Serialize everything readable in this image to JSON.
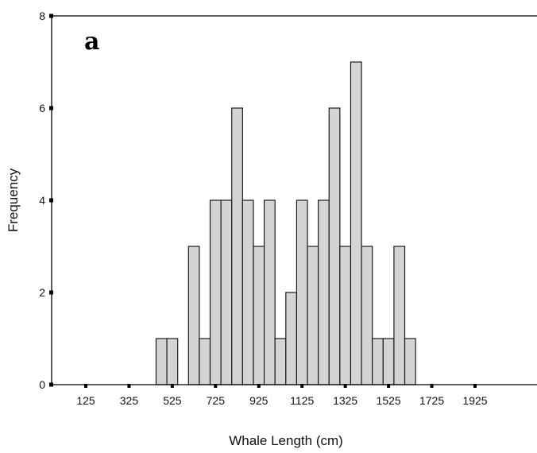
{
  "chart_data": {
    "type": "bar",
    "title": "",
    "panel_label": "a",
    "xlabel": "Whale Length (cm)",
    "ylabel": "Frequency",
    "ylim": [
      0,
      8
    ],
    "yticks": [
      0,
      2,
      4,
      6,
      8
    ],
    "xticks": [
      125,
      325,
      525,
      725,
      925,
      1125,
      1325,
      1525,
      1725,
      1925
    ],
    "xlim": [
      25,
      2125
    ],
    "bin_width": 50,
    "bin_centers": [
      475,
      525,
      625,
      675,
      725,
      775,
      825,
      875,
      925,
      975,
      1025,
      1075,
      1125,
      1175,
      1225,
      1275,
      1325,
      1375,
      1425,
      1475,
      1525,
      1575,
      1625
    ],
    "values": [
      1,
      1,
      3,
      1,
      4,
      4,
      6,
      4,
      3,
      4,
      1,
      2,
      4,
      3,
      4,
      6,
      3,
      7,
      3,
      1,
      1,
      3,
      1
    ],
    "grid": false,
    "legend": "none"
  }
}
